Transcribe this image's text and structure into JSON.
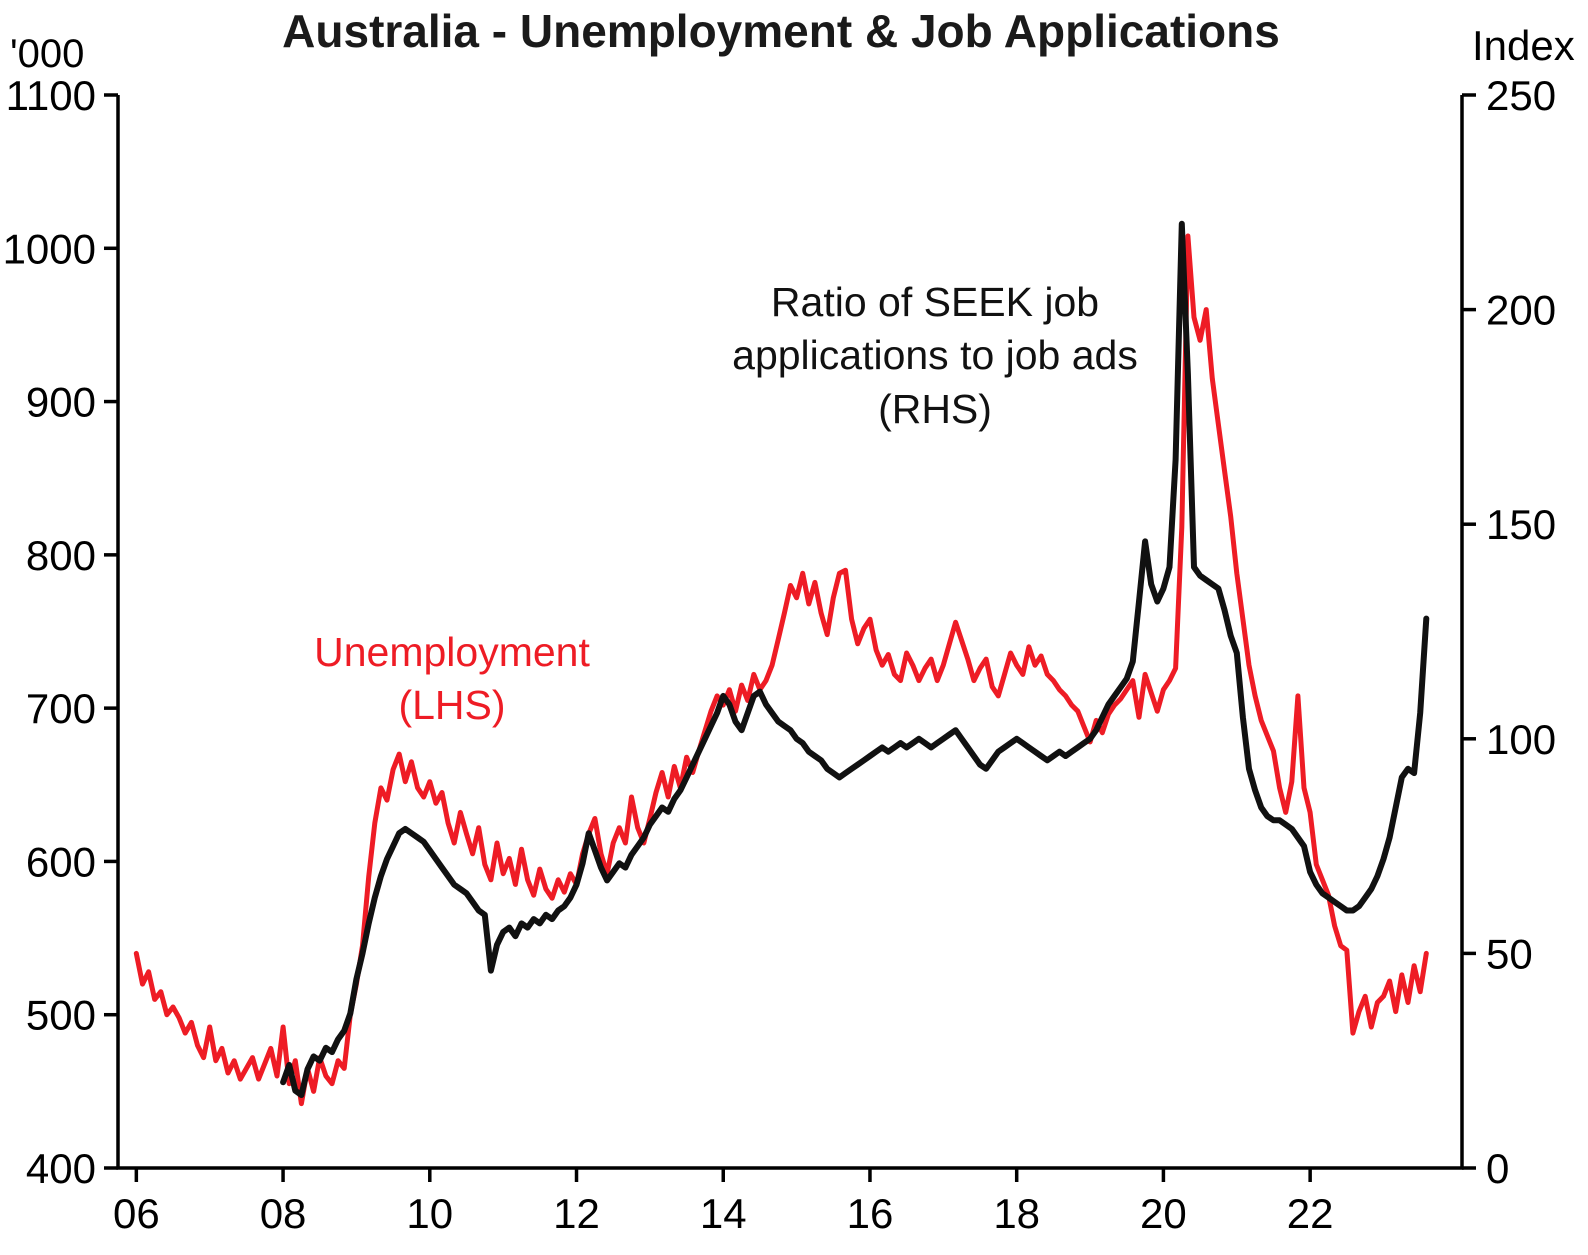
{
  "chart_data": {
    "type": "line",
    "title": "Australia - Unemployment & Job Applications",
    "x_range": [
      2005.75,
      2024.07
    ],
    "x_ticks": [
      {
        "value": 2006,
        "label": "06"
      },
      {
        "value": 2008,
        "label": "08"
      },
      {
        "value": 2010,
        "label": "10"
      },
      {
        "value": 2012,
        "label": "12"
      },
      {
        "value": 2014,
        "label": "14"
      },
      {
        "value": 2016,
        "label": "16"
      },
      {
        "value": 2018,
        "label": "18"
      },
      {
        "value": 2020,
        "label": "20"
      },
      {
        "value": 2022,
        "label": "22"
      }
    ],
    "y_left": {
      "unit": "'000",
      "range": [
        400,
        1100
      ],
      "ticks": [
        400,
        500,
        600,
        700,
        800,
        900,
        1000,
        1100
      ]
    },
    "y_right": {
      "unit": "Index",
      "range": [
        0,
        250
      ],
      "ticks": [
        0,
        50,
        100,
        150,
        200,
        250
      ]
    },
    "grid": false,
    "legend": "inline-annotations",
    "annotations": {
      "ratio": "Ratio of SEEK job\napplications to job ads\n(RHS)",
      "unemployment": "Unemployment\n(LHS)"
    },
    "series": [
      {
        "id": "unemployment-line",
        "name": "Unemployment (LHS)",
        "axis": "left",
        "color": "#ee1c25",
        "width": 5,
        "x_start": 2006.0,
        "x_step": 0.0833333,
        "values": [
          540,
          520,
          528,
          510,
          515,
          500,
          505,
          498,
          488,
          495,
          480,
          472,
          492,
          470,
          478,
          462,
          470,
          458,
          465,
          472,
          458,
          468,
          478,
          460,
          492,
          455,
          470,
          442,
          465,
          450,
          472,
          460,
          455,
          470,
          465,
          500,
          520,
          545,
          590,
          625,
          648,
          640,
          660,
          670,
          652,
          665,
          648,
          642,
          652,
          638,
          645,
          625,
          612,
          632,
          618,
          605,
          622,
          598,
          588,
          612,
          592,
          602,
          585,
          608,
          588,
          578,
          595,
          582,
          576,
          588,
          580,
          592,
          585,
          605,
          618,
          628,
          605,
          592,
          612,
          622,
          612,
          642,
          622,
          612,
          628,
          645,
          658,
          642,
          662,
          648,
          668,
          658,
          672,
          685,
          698,
          708,
          702,
          712,
          698,
          715,
          705,
          722,
          712,
          718,
          728,
          745,
          762,
          780,
          772,
          788,
          768,
          782,
          762,
          748,
          772,
          788,
          790,
          758,
          742,
          752,
          758,
          738,
          728,
          735,
          722,
          718,
          736,
          728,
          718,
          726,
          732,
          718,
          728,
          742,
          756,
          744,
          732,
          718,
          726,
          732,
          714,
          708,
          722,
          736,
          728,
          722,
          740,
          728,
          734,
          722,
          718,
          712,
          708,
          702,
          698,
          688,
          678,
          692,
          684,
          696,
          702,
          706,
          712,
          718,
          694,
          722,
          710,
          698,
          712,
          718,
          726,
          818,
          1008,
          955,
          940,
          960,
          915,
          885,
          855,
          825,
          788,
          758,
          728,
          708,
          692,
          682,
          672,
          648,
          632,
          652,
          708,
          648,
          632,
          598,
          588,
          578,
          558,
          545,
          542,
          488,
          502,
          512,
          492,
          508,
          512,
          522,
          502,
          526,
          508,
          532,
          515,
          540
        ]
      },
      {
        "id": "ratio-line",
        "name": "Ratio of SEEK job applications to job ads (RHS)",
        "axis": "right",
        "color": "#111111",
        "width": 6,
        "x_start": 2008.0,
        "x_step": 0.0833333,
        "values": [
          20,
          24,
          18,
          17,
          23,
          26,
          25,
          28,
          27,
          30,
          32,
          36,
          44,
          50,
          57,
          63,
          68,
          72,
          75,
          78,
          79,
          78,
          77,
          76,
          74,
          72,
          70,
          68,
          66,
          65,
          64,
          62,
          60,
          59,
          46,
          52,
          55,
          56,
          54,
          57,
          56,
          58,
          57,
          59,
          58,
          60,
          61,
          63,
          66,
          71,
          78,
          74,
          70,
          67,
          69,
          71,
          70,
          73,
          75,
          77,
          80,
          82,
          84,
          83,
          86,
          88,
          91,
          94,
          97,
          100,
          103,
          106,
          110,
          108,
          104,
          102,
          106,
          110,
          111,
          108,
          106,
          104,
          103,
          102,
          100,
          99,
          97,
          96,
          95,
          93,
          92,
          91,
          92,
          93,
          94,
          95,
          96,
          97,
          98,
          97,
          98,
          99,
          98,
          99,
          100,
          99,
          98,
          99,
          100,
          101,
          102,
          100,
          98,
          96,
          94,
          93,
          95,
          97,
          98,
          99,
          100,
          99,
          98,
          97,
          96,
          95,
          96,
          97,
          96,
          97,
          98,
          99,
          100,
          102,
          105,
          108,
          110,
          112,
          114,
          118,
          132,
          146,
          136,
          132,
          135,
          140,
          165,
          220,
          185,
          140,
          138,
          137,
          136,
          135,
          130,
          124,
          120,
          105,
          93,
          88,
          84,
          82,
          81,
          81,
          80,
          79,
          77,
          75,
          69,
          66,
          64,
          63,
          62,
          61,
          60,
          60,
          61,
          63,
          65,
          68,
          72,
          77,
          84,
          91,
          93,
          92,
          106,
          128
        ]
      }
    ]
  }
}
